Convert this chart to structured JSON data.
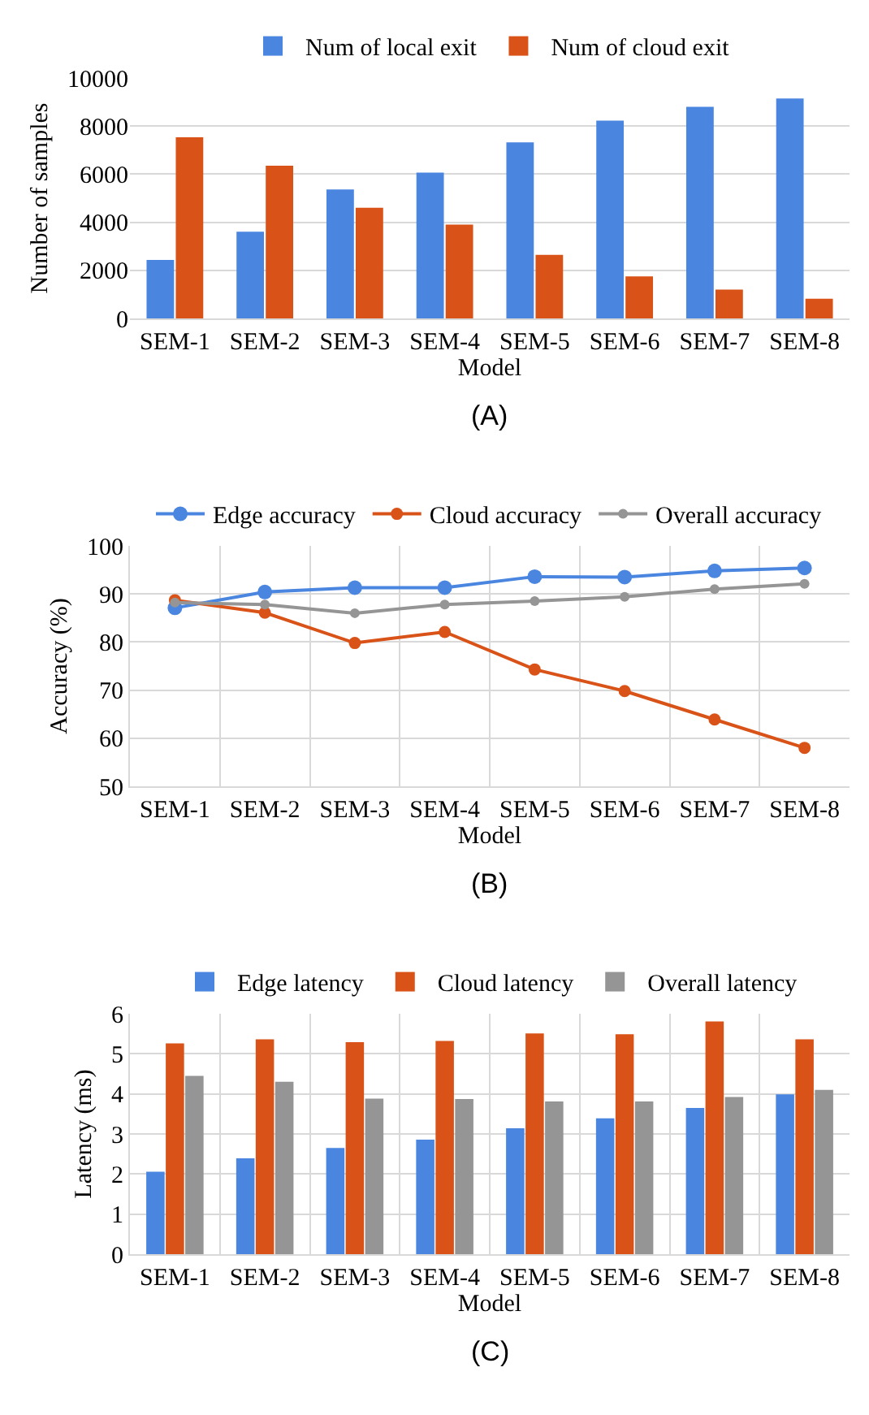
{
  "chart_data": [
    {
      "type": "bar",
      "xlabel": "Model",
      "ylabel": "Number of samples",
      "annotations": [
        "(A)"
      ],
      "categories": [
        "SEM-1",
        "SEM-2",
        "SEM-3",
        "SEM-4",
        "SEM-5",
        "SEM-6",
        "SEM-7",
        "SEM-8"
      ],
      "series": [
        {
          "name": "Num of local exit",
          "color": "#4a86e0",
          "values": [
            2430,
            3610,
            5360,
            6060,
            7320,
            8230,
            8800,
            9150
          ]
        },
        {
          "name": "Num of cloud exit",
          "color": "#d95319",
          "values": [
            7530,
            6350,
            4600,
            3900,
            2640,
            1750,
            1200,
            820
          ]
        }
      ],
      "ylim": [
        0,
        10000
      ],
      "yticks": [
        0,
        2000,
        4000,
        6000,
        8000,
        10000
      ],
      "grid": "y",
      "legend": "top"
    },
    {
      "type": "line",
      "xlabel": "Model",
      "ylabel": "Accuracy (%)",
      "annotations": [
        "(B)"
      ],
      "categories": [
        "SEM-1",
        "SEM-2",
        "SEM-3",
        "SEM-4",
        "SEM-5",
        "SEM-6",
        "SEM-7",
        "SEM-8"
      ],
      "series": [
        {
          "name": "Edge accuracy",
          "color": "#4a86e0",
          "values": [
            87.1,
            90.4,
            91.3,
            91.3,
            93.6,
            93.5,
            94.8,
            95.4
          ]
        },
        {
          "name": "Cloud accuracy",
          "color": "#d95319",
          "values": [
            88.7,
            86.1,
            79.8,
            82.1,
            74.3,
            69.8,
            63.9,
            58.0
          ]
        },
        {
          "name": "Overall accuracy",
          "color": "#959595",
          "values": [
            88.2,
            87.8,
            86.0,
            87.8,
            88.5,
            89.4,
            91.0,
            92.1
          ]
        }
      ],
      "ylim": [
        50,
        100
      ],
      "yticks": [
        50,
        60,
        70,
        80,
        90,
        100
      ],
      "grid": true,
      "legend": "top",
      "marker": "circle",
      "line_style": "solid"
    },
    {
      "type": "bar",
      "xlabel": "Model",
      "ylabel": "Latency (ms)",
      "annotations": [
        "(C)"
      ],
      "categories": [
        "SEM-1",
        "SEM-2",
        "SEM-3",
        "SEM-4",
        "SEM-5",
        "SEM-6",
        "SEM-7",
        "SEM-8"
      ],
      "series": [
        {
          "name": "Edge latency",
          "color": "#4a86e0",
          "values": [
            2.06,
            2.39,
            2.65,
            2.86,
            3.14,
            3.39,
            3.65,
            3.99
          ]
        },
        {
          "name": "Cloud latency",
          "color": "#d95319",
          "values": [
            5.26,
            5.36,
            5.29,
            5.32,
            5.51,
            5.49,
            5.81,
            5.36
          ]
        },
        {
          "name": "Overall latency",
          "color": "#959595",
          "values": [
            4.45,
            4.3,
            3.88,
            3.87,
            3.81,
            3.81,
            3.92,
            4.1
          ]
        }
      ],
      "ylim": [
        0,
        6
      ],
      "yticks": [
        0,
        1,
        2,
        3,
        4,
        5,
        6
      ],
      "grid": true,
      "legend": "top"
    }
  ]
}
